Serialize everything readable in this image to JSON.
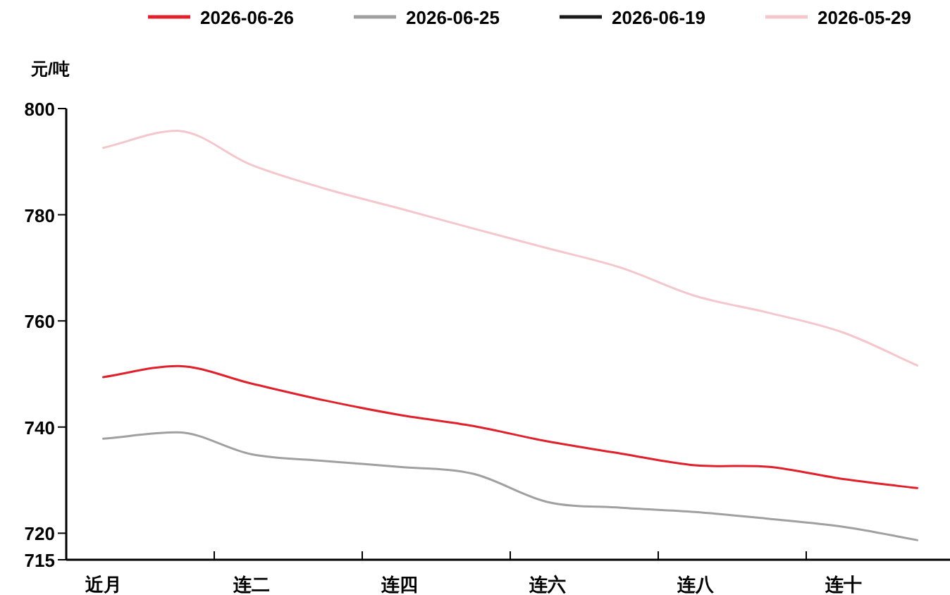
{
  "chart_data": {
    "type": "line",
    "ylabel": "元/吨",
    "legend": "top",
    "grid": false,
    "marker": "none",
    "line_style": "solid",
    "categories": [
      "近月",
      null,
      "连二",
      null,
      "连四",
      null,
      "连六",
      null,
      "连八",
      null,
      "连十",
      null
    ],
    "ylim": [
      715,
      800
    ],
    "yticks": [
      715,
      720,
      740,
      760,
      780,
      800
    ],
    "series": [
      {
        "name": "2026-06-26",
        "color": "#e0202a",
        "values": [
          749.4,
          751.5,
          748.2,
          745.0,
          742.3,
          740.2,
          737.3,
          735.0,
          732.8,
          732.5,
          730.2,
          728.5
        ]
      },
      {
        "name": "2026-06-25",
        "color": "#a0a0a0",
        "values": [
          737.8,
          739.0,
          734.9,
          733.6,
          732.5,
          731.2,
          725.9,
          724.8,
          724.0,
          722.7,
          721.2,
          718.7
        ]
      },
      {
        "name": "2026-06-19",
        "color": "#1a1a1a",
        "values": [
          null,
          null,
          null,
          null,
          null,
          null,
          null,
          null,
          null,
          null,
          null,
          null
        ]
      },
      {
        "name": "2026-05-29",
        "color": "#f5c6cb",
        "values": [
          792.6,
          795.8,
          789.4,
          784.9,
          781.2,
          777.4,
          773.7,
          770.0,
          764.7,
          761.5,
          757.8,
          751.6
        ]
      }
    ]
  }
}
